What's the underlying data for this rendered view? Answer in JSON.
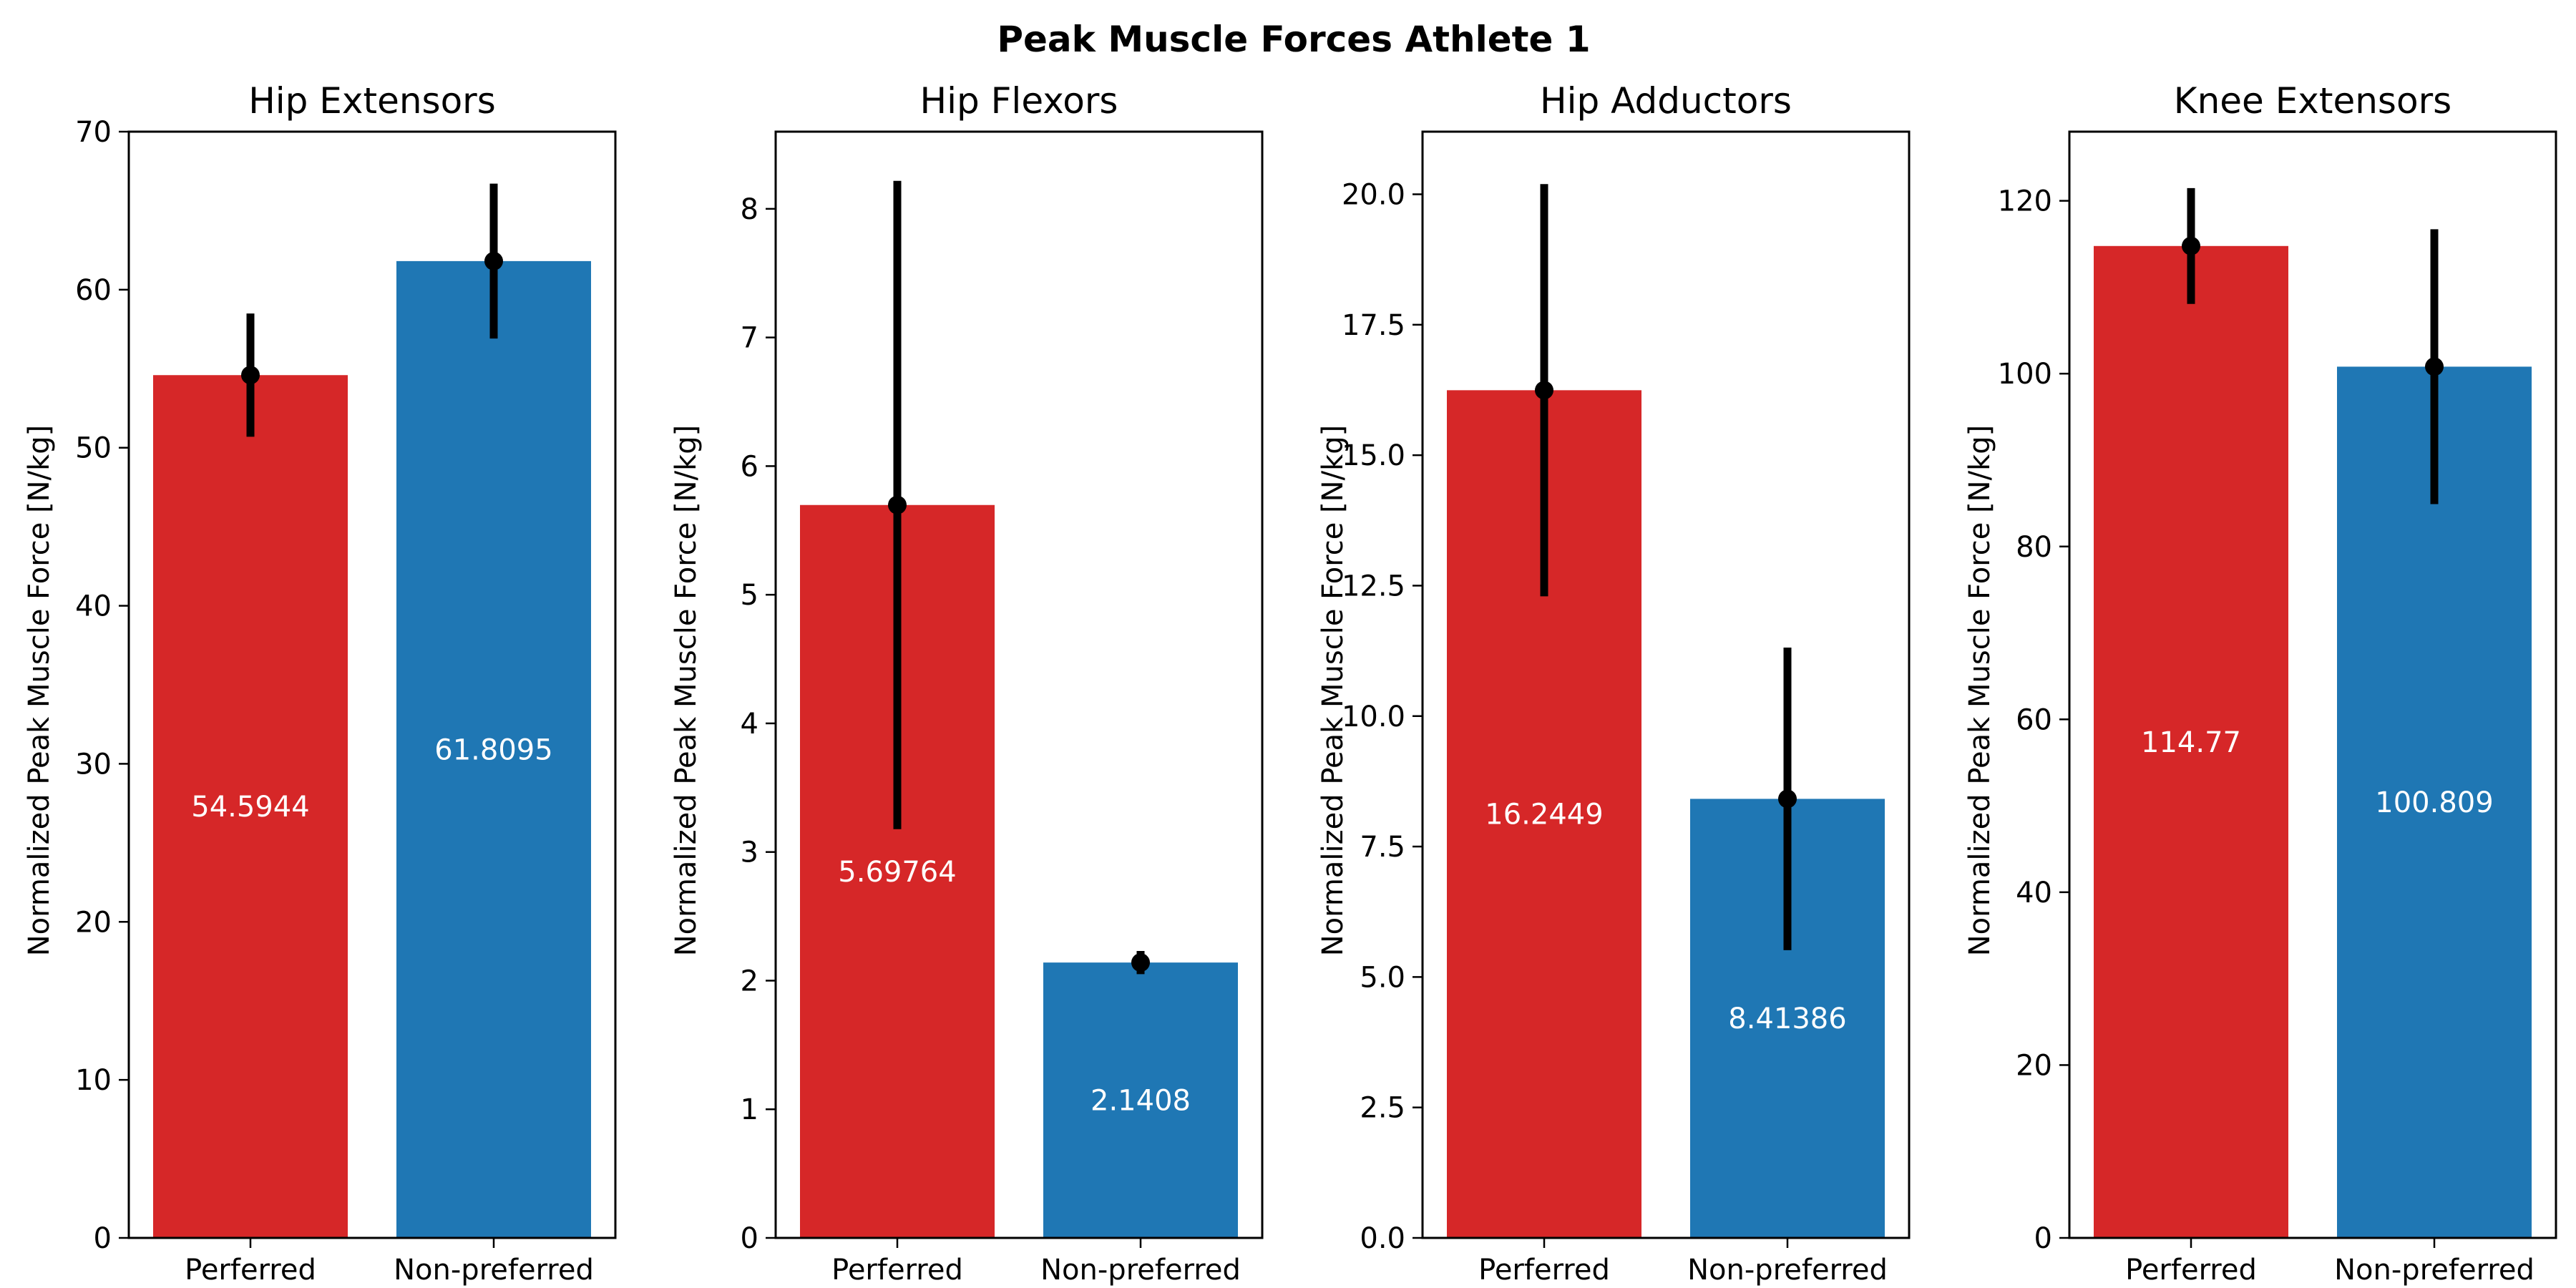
{
  "figure": {
    "title": "Peak Muscle Forces Athlete 1"
  },
  "colors": {
    "preferred": "#d62728",
    "non_preferred": "#1f77b4",
    "error_bar": "#000000",
    "value_label": "#ffffff"
  },
  "chart_data": [
    {
      "type": "bar",
      "title": "Hip Extensors",
      "xlabel": "",
      "ylabel": "Normalized Peak Muscle Force [N/kg]",
      "categories": [
        "Perferred",
        "Non-preferred"
      ],
      "values": [
        54.5944,
        61.8095
      ],
      "value_labels": [
        "54.5944",
        "61.8095"
      ],
      "errors": [
        3.9,
        4.9
      ],
      "ylim": [
        0,
        70
      ],
      "yticks": [
        0,
        10,
        20,
        30,
        40,
        50,
        60,
        70
      ],
      "ytick_labels": [
        "0",
        "10",
        "20",
        "30",
        "40",
        "50",
        "60",
        "70"
      ]
    },
    {
      "type": "bar",
      "title": "Hip Flexors",
      "xlabel": "",
      "ylabel": "Normalized Peak Muscle Force [N/kg]",
      "categories": [
        "Perferred",
        "Non-preferred"
      ],
      "values": [
        5.69764,
        2.1408
      ],
      "value_labels": [
        "5.69764",
        "2.1408"
      ],
      "errors": [
        2.52,
        0.09
      ],
      "ylim": [
        0,
        8.6
      ],
      "yticks": [
        0,
        1,
        2,
        3,
        4,
        5,
        6,
        7,
        8
      ],
      "ytick_labels": [
        "0",
        "1",
        "2",
        "3",
        "4",
        "5",
        "6",
        "7",
        "8"
      ]
    },
    {
      "type": "bar",
      "title": "Hip Adductors",
      "xlabel": "",
      "ylabel": "Normalized Peak Muscle Force [N/kg]",
      "categories": [
        "Perferred",
        "Non-preferred"
      ],
      "values": [
        16.2449,
        8.41386
      ],
      "value_labels": [
        "16.2449",
        "8.41386"
      ],
      "errors": [
        3.95,
        2.9
      ],
      "ylim": [
        0,
        21.2
      ],
      "yticks": [
        0,
        2.5,
        5,
        7.5,
        10,
        12.5,
        15,
        17.5,
        20
      ],
      "ytick_labels": [
        "0.0",
        "2.5",
        "5.0",
        "7.5",
        "10.0",
        "12.5",
        "15.0",
        "17.5",
        "20.0"
      ]
    },
    {
      "type": "bar",
      "title": "Knee Extensors",
      "xlabel": "",
      "ylabel": "Normalized Peak Muscle Force [N/kg]",
      "categories": [
        "Perferred",
        "Non-preferred"
      ],
      "values": [
        114.77,
        100.809
      ],
      "value_labels": [
        "114.77",
        "100.809"
      ],
      "errors": [
        6.7,
        15.9
      ],
      "ylim": [
        0,
        128
      ],
      "yticks": [
        0,
        20,
        40,
        60,
        80,
        100,
        120
      ],
      "ytick_labels": [
        "0",
        "20",
        "40",
        "60",
        "80",
        "100",
        "120"
      ]
    }
  ]
}
